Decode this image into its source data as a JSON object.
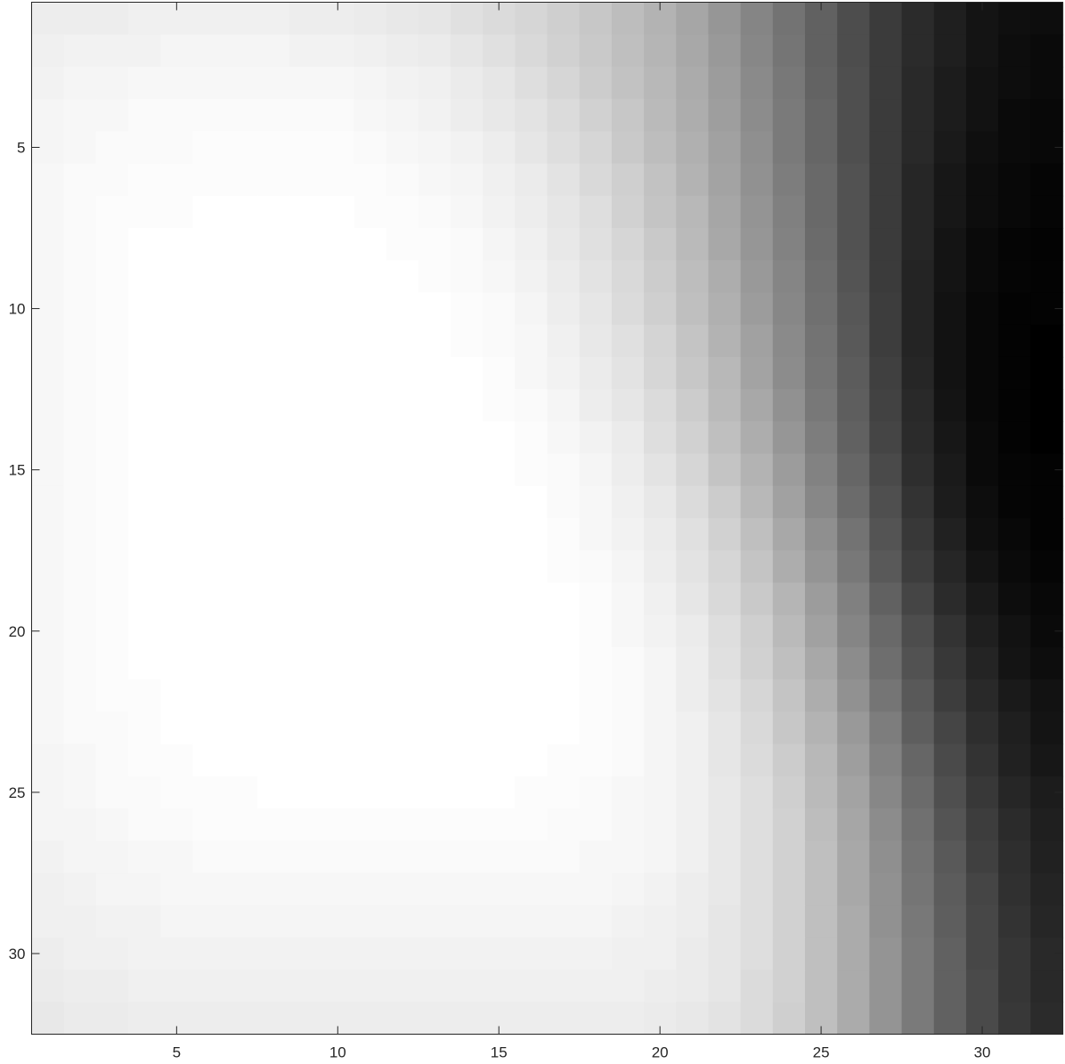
{
  "chart_data": {
    "type": "heatmap",
    "colormap": "gray",
    "rows": 32,
    "cols": 32,
    "clim": [
      0,
      1
    ],
    "xlim": [
      0.5,
      32.5
    ],
    "ylim": [
      0.5,
      32.5
    ],
    "y_direction": "reverse",
    "xticks": [
      5,
      10,
      15,
      20,
      25,
      30
    ],
    "yticks": [
      5,
      10,
      15,
      20,
      25,
      30
    ],
    "xtick_labels": [
      "5",
      "10",
      "15",
      "20",
      "25",
      "30"
    ],
    "ytick_labels": [
      "5",
      "10",
      "15",
      "20",
      "25",
      "30"
    ],
    "description_of_values": "intensity matrix rows 1-32 x cols 1-32; 1 = white, 0 = black",
    "values": [
      [
        0.93,
        0.93,
        0.93,
        0.94,
        0.94,
        0.94,
        0.94,
        0.94,
        0.93,
        0.93,
        0.92,
        0.91,
        0.9,
        0.88,
        0.86,
        0.84,
        0.81,
        0.78,
        0.74,
        0.7,
        0.65,
        0.59,
        0.52,
        0.45,
        0.38,
        0.3,
        0.23,
        0.17,
        0.12,
        0.08,
        0.06,
        0.05
      ],
      [
        0.94,
        0.95,
        0.95,
        0.95,
        0.96,
        0.96,
        0.96,
        0.96,
        0.95,
        0.95,
        0.94,
        0.93,
        0.92,
        0.9,
        0.88,
        0.85,
        0.82,
        0.79,
        0.75,
        0.71,
        0.66,
        0.6,
        0.53,
        0.46,
        0.38,
        0.3,
        0.23,
        0.17,
        0.12,
        0.08,
        0.05,
        0.04
      ],
      [
        0.95,
        0.96,
        0.96,
        0.97,
        0.97,
        0.97,
        0.97,
        0.97,
        0.97,
        0.97,
        0.96,
        0.95,
        0.94,
        0.92,
        0.9,
        0.87,
        0.84,
        0.8,
        0.76,
        0.72,
        0.67,
        0.61,
        0.54,
        0.47,
        0.39,
        0.31,
        0.23,
        0.16,
        0.11,
        0.07,
        0.05,
        0.04
      ],
      [
        0.96,
        0.97,
        0.97,
        0.98,
        0.98,
        0.98,
        0.98,
        0.98,
        0.98,
        0.98,
        0.97,
        0.96,
        0.95,
        0.93,
        0.91,
        0.89,
        0.86,
        0.82,
        0.78,
        0.73,
        0.68,
        0.62,
        0.55,
        0.48,
        0.4,
        0.31,
        0.23,
        0.16,
        0.11,
        0.07,
        0.04,
        0.03
      ],
      [
        0.96,
        0.97,
        0.98,
        0.98,
        0.98,
        0.99,
        0.99,
        0.99,
        0.99,
        0.99,
        0.98,
        0.97,
        0.96,
        0.95,
        0.93,
        0.9,
        0.87,
        0.84,
        0.79,
        0.74,
        0.69,
        0.63,
        0.56,
        0.48,
        0.4,
        0.31,
        0.23,
        0.16,
        0.1,
        0.06,
        0.04,
        0.03
      ],
      [
        0.97,
        0.98,
        0.98,
        0.99,
        0.99,
        0.99,
        0.99,
        0.99,
        0.99,
        0.99,
        0.99,
        0.98,
        0.97,
        0.96,
        0.94,
        0.92,
        0.89,
        0.85,
        0.81,
        0.76,
        0.7,
        0.64,
        0.57,
        0.49,
        0.41,
        0.32,
        0.23,
        0.15,
        0.09,
        0.05,
        0.03,
        0.02
      ],
      [
        0.97,
        0.98,
        0.99,
        0.99,
        0.99,
        1.0,
        1.0,
        1.0,
        1.0,
        1.0,
        0.99,
        0.99,
        0.98,
        0.97,
        0.95,
        0.93,
        0.9,
        0.87,
        0.82,
        0.77,
        0.72,
        0.65,
        0.58,
        0.5,
        0.41,
        0.32,
        0.23,
        0.15,
        0.09,
        0.05,
        0.03,
        0.02
      ],
      [
        0.97,
        0.98,
        0.99,
        1.0,
        1.0,
        1.0,
        1.0,
        1.0,
        1.0,
        1.0,
        1.0,
        0.99,
        0.99,
        0.98,
        0.96,
        0.94,
        0.91,
        0.88,
        0.84,
        0.79,
        0.73,
        0.66,
        0.59,
        0.51,
        0.42,
        0.32,
        0.23,
        0.15,
        0.08,
        0.04,
        0.02,
        0.01
      ],
      [
        0.97,
        0.98,
        0.99,
        1.0,
        1.0,
        1.0,
        1.0,
        1.0,
        1.0,
        1.0,
        1.0,
        1.0,
        0.99,
        0.98,
        0.97,
        0.95,
        0.92,
        0.89,
        0.85,
        0.8,
        0.74,
        0.68,
        0.6,
        0.52,
        0.43,
        0.33,
        0.23,
        0.14,
        0.08,
        0.04,
        0.02,
        0.01
      ],
      [
        0.97,
        0.98,
        0.99,
        1.0,
        1.0,
        1.0,
        1.0,
        1.0,
        1.0,
        1.0,
        1.0,
        1.0,
        1.0,
        0.99,
        0.98,
        0.96,
        0.93,
        0.9,
        0.86,
        0.81,
        0.75,
        0.69,
        0.61,
        0.53,
        0.44,
        0.34,
        0.24,
        0.14,
        0.07,
        0.03,
        0.01,
        0.01
      ],
      [
        0.97,
        0.98,
        0.99,
        1.0,
        1.0,
        1.0,
        1.0,
        1.0,
        1.0,
        1.0,
        1.0,
        1.0,
        1.0,
        0.99,
        0.98,
        0.97,
        0.94,
        0.91,
        0.88,
        0.83,
        0.77,
        0.7,
        0.63,
        0.54,
        0.45,
        0.35,
        0.24,
        0.14,
        0.07,
        0.03,
        0.01,
        0.0
      ],
      [
        0.97,
        0.98,
        0.99,
        1.0,
        1.0,
        1.0,
        1.0,
        1.0,
        1.0,
        1.0,
        1.0,
        1.0,
        1.0,
        1.0,
        0.99,
        0.97,
        0.95,
        0.92,
        0.89,
        0.84,
        0.78,
        0.72,
        0.64,
        0.55,
        0.46,
        0.36,
        0.25,
        0.15,
        0.07,
        0.03,
        0.01,
        0.0
      ],
      [
        0.97,
        0.98,
        0.99,
        1.0,
        1.0,
        1.0,
        1.0,
        1.0,
        1.0,
        1.0,
        1.0,
        1.0,
        1.0,
        1.0,
        0.99,
        0.98,
        0.96,
        0.93,
        0.9,
        0.86,
        0.8,
        0.73,
        0.66,
        0.57,
        0.47,
        0.37,
        0.26,
        0.16,
        0.08,
        0.03,
        0.01,
        0.0
      ],
      [
        0.97,
        0.98,
        0.99,
        1.0,
        1.0,
        1.0,
        1.0,
        1.0,
        1.0,
        1.0,
        1.0,
        1.0,
        1.0,
        1.0,
        1.0,
        0.99,
        0.97,
        0.95,
        0.92,
        0.87,
        0.82,
        0.75,
        0.68,
        0.59,
        0.49,
        0.38,
        0.27,
        0.17,
        0.09,
        0.04,
        0.01,
        0.0
      ],
      [
        0.97,
        0.98,
        0.99,
        1.0,
        1.0,
        1.0,
        1.0,
        1.0,
        1.0,
        1.0,
        1.0,
        1.0,
        1.0,
        1.0,
        1.0,
        0.99,
        0.98,
        0.96,
        0.93,
        0.89,
        0.84,
        0.77,
        0.7,
        0.61,
        0.51,
        0.4,
        0.29,
        0.18,
        0.1,
        0.04,
        0.02,
        0.01
      ],
      [
        0.97,
        0.98,
        0.99,
        1.0,
        1.0,
        1.0,
        1.0,
        1.0,
        1.0,
        1.0,
        1.0,
        1.0,
        1.0,
        1.0,
        1.0,
        1.0,
        0.98,
        0.97,
        0.94,
        0.91,
        0.86,
        0.8,
        0.72,
        0.63,
        0.53,
        0.42,
        0.31,
        0.2,
        0.11,
        0.05,
        0.02,
        0.01
      ],
      [
        0.97,
        0.98,
        0.99,
        1.0,
        1.0,
        1.0,
        1.0,
        1.0,
        1.0,
        1.0,
        1.0,
        1.0,
        1.0,
        1.0,
        1.0,
        1.0,
        0.99,
        0.97,
        0.95,
        0.92,
        0.88,
        0.82,
        0.75,
        0.66,
        0.56,
        0.45,
        0.33,
        0.22,
        0.13,
        0.06,
        0.03,
        0.01
      ],
      [
        0.97,
        0.98,
        0.99,
        1.0,
        1.0,
        1.0,
        1.0,
        1.0,
        1.0,
        1.0,
        1.0,
        1.0,
        1.0,
        1.0,
        1.0,
        1.0,
        0.99,
        0.98,
        0.96,
        0.93,
        0.89,
        0.84,
        0.77,
        0.68,
        0.58,
        0.47,
        0.35,
        0.24,
        0.15,
        0.08,
        0.04,
        0.02
      ],
      [
        0.97,
        0.98,
        0.99,
        1.0,
        1.0,
        1.0,
        1.0,
        1.0,
        1.0,
        1.0,
        1.0,
        1.0,
        1.0,
        1.0,
        1.0,
        1.0,
        1.0,
        0.99,
        0.97,
        0.94,
        0.9,
        0.85,
        0.79,
        0.71,
        0.61,
        0.5,
        0.38,
        0.27,
        0.17,
        0.1,
        0.05,
        0.03
      ],
      [
        0.97,
        0.98,
        0.99,
        1.0,
        1.0,
        1.0,
        1.0,
        1.0,
        1.0,
        1.0,
        1.0,
        1.0,
        1.0,
        1.0,
        1.0,
        1.0,
        1.0,
        0.99,
        0.97,
        0.95,
        0.92,
        0.87,
        0.81,
        0.73,
        0.63,
        0.52,
        0.41,
        0.3,
        0.2,
        0.12,
        0.07,
        0.04
      ],
      [
        0.97,
        0.98,
        0.99,
        1.0,
        1.0,
        1.0,
        1.0,
        1.0,
        1.0,
        1.0,
        1.0,
        1.0,
        1.0,
        1.0,
        1.0,
        1.0,
        1.0,
        0.99,
        0.98,
        0.96,
        0.93,
        0.88,
        0.82,
        0.75,
        0.66,
        0.55,
        0.43,
        0.32,
        0.22,
        0.14,
        0.08,
        0.05
      ],
      [
        0.97,
        0.98,
        0.99,
        0.99,
        1.0,
        1.0,
        1.0,
        1.0,
        1.0,
        1.0,
        1.0,
        1.0,
        1.0,
        1.0,
        1.0,
        1.0,
        1.0,
        0.99,
        0.98,
        0.96,
        0.93,
        0.89,
        0.84,
        0.77,
        0.68,
        0.57,
        0.46,
        0.35,
        0.24,
        0.16,
        0.1,
        0.07
      ],
      [
        0.97,
        0.98,
        0.98,
        0.99,
        1.0,
        1.0,
        1.0,
        1.0,
        1.0,
        1.0,
        1.0,
        1.0,
        1.0,
        1.0,
        1.0,
        1.0,
        1.0,
        0.99,
        0.98,
        0.96,
        0.94,
        0.9,
        0.85,
        0.78,
        0.7,
        0.6,
        0.49,
        0.37,
        0.27,
        0.18,
        0.12,
        0.08
      ],
      [
        0.96,
        0.97,
        0.98,
        0.99,
        0.99,
        1.0,
        1.0,
        1.0,
        1.0,
        1.0,
        1.0,
        1.0,
        1.0,
        1.0,
        1.0,
        1.0,
        0.99,
        0.99,
        0.98,
        0.96,
        0.94,
        0.9,
        0.86,
        0.8,
        0.72,
        0.62,
        0.51,
        0.4,
        0.29,
        0.2,
        0.13,
        0.09
      ],
      [
        0.96,
        0.97,
        0.98,
        0.98,
        0.99,
        0.99,
        0.99,
        1.0,
        1.0,
        1.0,
        1.0,
        1.0,
        1.0,
        1.0,
        1.0,
        0.99,
        0.99,
        0.98,
        0.97,
        0.96,
        0.94,
        0.91,
        0.87,
        0.81,
        0.73,
        0.64,
        0.53,
        0.42,
        0.31,
        0.22,
        0.15,
        0.11
      ],
      [
        0.96,
        0.96,
        0.97,
        0.98,
        0.98,
        0.99,
        0.99,
        0.99,
        0.99,
        0.99,
        0.99,
        0.99,
        0.99,
        0.99,
        0.99,
        0.99,
        0.98,
        0.98,
        0.97,
        0.96,
        0.94,
        0.91,
        0.87,
        0.82,
        0.74,
        0.65,
        0.55,
        0.44,
        0.33,
        0.24,
        0.17,
        0.12
      ],
      [
        0.95,
        0.96,
        0.96,
        0.97,
        0.97,
        0.98,
        0.98,
        0.98,
        0.98,
        0.98,
        0.98,
        0.98,
        0.98,
        0.98,
        0.98,
        0.98,
        0.98,
        0.97,
        0.97,
        0.96,
        0.94,
        0.91,
        0.87,
        0.82,
        0.75,
        0.66,
        0.56,
        0.45,
        0.35,
        0.25,
        0.18,
        0.13
      ],
      [
        0.94,
        0.95,
        0.96,
        0.96,
        0.97,
        0.97,
        0.97,
        0.97,
        0.97,
        0.97,
        0.97,
        0.97,
        0.97,
        0.97,
        0.97,
        0.97,
        0.97,
        0.97,
        0.96,
        0.95,
        0.93,
        0.91,
        0.87,
        0.82,
        0.75,
        0.66,
        0.57,
        0.46,
        0.36,
        0.27,
        0.19,
        0.14
      ],
      [
        0.94,
        0.94,
        0.95,
        0.95,
        0.96,
        0.96,
        0.96,
        0.96,
        0.96,
        0.96,
        0.96,
        0.96,
        0.96,
        0.96,
        0.96,
        0.96,
        0.96,
        0.96,
        0.95,
        0.94,
        0.93,
        0.9,
        0.87,
        0.82,
        0.75,
        0.67,
        0.57,
        0.47,
        0.37,
        0.28,
        0.2,
        0.15
      ],
      [
        0.93,
        0.94,
        0.94,
        0.95,
        0.95,
        0.95,
        0.95,
        0.95,
        0.95,
        0.95,
        0.95,
        0.95,
        0.95,
        0.95,
        0.95,
        0.95,
        0.95,
        0.95,
        0.94,
        0.94,
        0.92,
        0.9,
        0.87,
        0.82,
        0.75,
        0.67,
        0.58,
        0.48,
        0.38,
        0.28,
        0.21,
        0.16
      ],
      [
        0.92,
        0.93,
        0.93,
        0.94,
        0.94,
        0.94,
        0.94,
        0.94,
        0.94,
        0.94,
        0.94,
        0.94,
        0.94,
        0.94,
        0.94,
        0.94,
        0.94,
        0.94,
        0.94,
        0.93,
        0.92,
        0.9,
        0.86,
        0.82,
        0.75,
        0.67,
        0.58,
        0.48,
        0.38,
        0.29,
        0.21,
        0.16
      ],
      [
        0.91,
        0.92,
        0.92,
        0.93,
        0.93,
        0.93,
        0.93,
        0.93,
        0.93,
        0.93,
        0.93,
        0.93,
        0.93,
        0.93,
        0.93,
        0.93,
        0.93,
        0.93,
        0.93,
        0.92,
        0.91,
        0.89,
        0.86,
        0.81,
        0.75,
        0.67,
        0.58,
        0.48,
        0.38,
        0.29,
        0.22,
        0.17
      ]
    ]
  }
}
